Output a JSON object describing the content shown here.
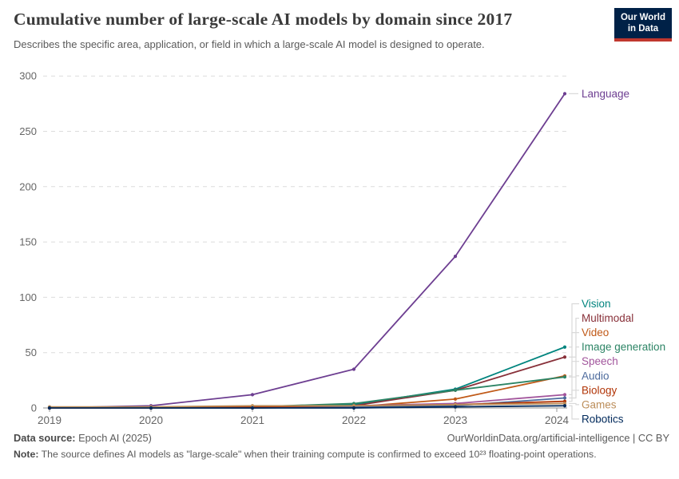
{
  "header": {
    "title": "Cumulative number of large-scale AI models by domain since 2017",
    "subtitle": "Describes the specific area, application, or field in which a large-scale AI model is designed to operate.",
    "logo": {
      "line1": "Our World",
      "line2": "in Data",
      "bg_color": "#002147",
      "accent_color": "#c0372e"
    }
  },
  "chart_data": {
    "type": "line",
    "title": "Cumulative number of large-scale AI models by domain since 2017",
    "xlabel": "",
    "ylabel": "",
    "x_tick_labels": [
      "2019",
      "2020",
      "2021",
      "2022",
      "2023",
      "2024"
    ],
    "y_ticks": [
      0,
      50,
      100,
      150,
      200,
      250,
      300
    ],
    "ylim": [
      0,
      300
    ],
    "grid": "horizontal-dashed",
    "legend_position": "right-end-labels",
    "categories": [
      2019,
      2020,
      2021,
      2022,
      2023,
      2024
    ],
    "series": [
      {
        "name": "Language",
        "color": "#6D3E91",
        "values": [
          0,
          2,
          12,
          35,
          137,
          284
        ]
      },
      {
        "name": "Vision",
        "color": "#00847E",
        "values": [
          0,
          0,
          1,
          3,
          17,
          55
        ]
      },
      {
        "name": "Multimodal",
        "color": "#883039",
        "values": [
          0,
          0,
          0,
          2,
          16,
          46
        ]
      },
      {
        "name": "Video",
        "color": "#C05917",
        "values": [
          0,
          0,
          0,
          1,
          8,
          29
        ]
      },
      {
        "name": "Image generation",
        "color": "#2C8465",
        "values": [
          0,
          0,
          1,
          4,
          16,
          28
        ]
      },
      {
        "name": "Speech",
        "color": "#A2559C",
        "values": [
          0,
          0,
          1,
          2,
          4,
          12
        ]
      },
      {
        "name": "Audio",
        "color": "#4C6A9C",
        "values": [
          0,
          0,
          0,
          1,
          2,
          9
        ]
      },
      {
        "name": "Biology",
        "color": "#B13507",
        "values": [
          0,
          0,
          1,
          2,
          3,
          6
        ]
      },
      {
        "name": "Games",
        "color": "#BC8E5A",
        "values": [
          1,
          1,
          2,
          2,
          3,
          4
        ]
      },
      {
        "name": "Robotics",
        "color": "#00295B",
        "values": [
          0,
          0,
          0,
          0,
          1,
          2
        ]
      }
    ]
  },
  "footer": {
    "source_label": "Data source:",
    "source_value": " Epoch AI (2025)",
    "link": "OurWorldinData.org/artificial-intelligence | CC BY",
    "note_label": "Note:",
    "note_value": " The source defines AI models as \"large-scale\" when their training compute is confirmed to exceed 10²³ floating-point operations."
  }
}
